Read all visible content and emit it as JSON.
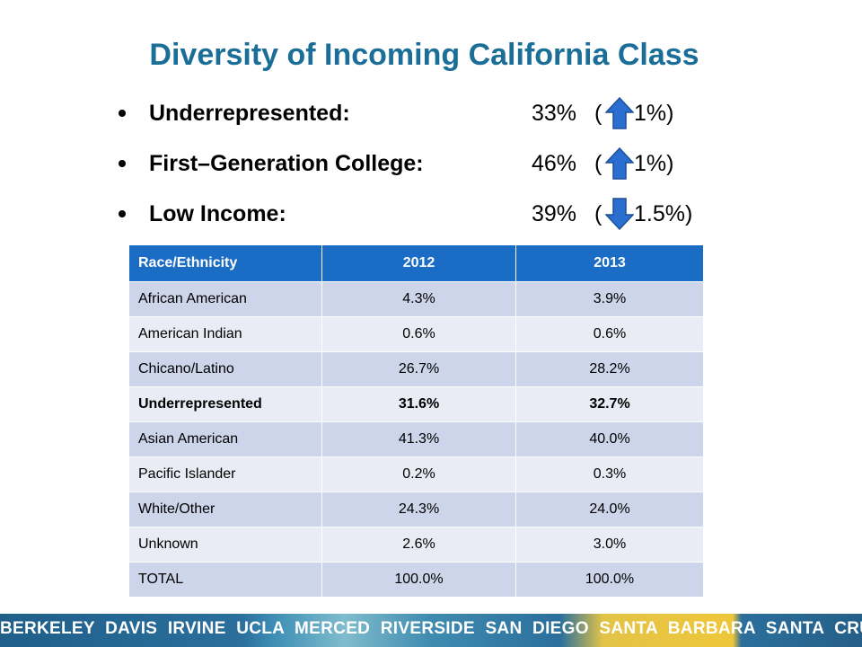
{
  "title": "Diversity of Incoming California Class",
  "bullets": [
    {
      "label": "Underrepresented:",
      "value": "33%",
      "paren_open": "(",
      "change": "1%)",
      "direction": "up"
    },
    {
      "label": "First–Generation College:",
      "value": "46%",
      "paren_open": "(",
      "change": "1%)",
      "direction": "up"
    },
    {
      "label": "Low Income:",
      "value": "39%",
      "paren_open": "(",
      "change": "1.5%)",
      "direction": "down"
    }
  ],
  "table": {
    "headers": [
      "Race/Ethnicity",
      "2012",
      "2013"
    ],
    "rows": [
      [
        "African American",
        "4.3%",
        "3.9%"
      ],
      [
        "American Indian",
        "0.6%",
        "0.6%"
      ],
      [
        "Chicano/Latino",
        "26.7%",
        "28.2%"
      ],
      [
        "Underrepresented",
        "31.6%",
        "32.7%"
      ],
      [
        "Asian American",
        "41.3%",
        "40.0%"
      ],
      [
        "Pacific Islander",
        "0.2%",
        "0.3%"
      ],
      [
        "White/Other",
        "24.3%",
        "24.0%"
      ],
      [
        "Unknown",
        "2.6%",
        "3.0%"
      ],
      [
        "TOTAL",
        "100.0%",
        "100.0%"
      ]
    ]
  },
  "footer": {
    "campuses": "BERKELEY DAVIS IRVINE UCLA MERCED RIVERSIDE SAN DIEGO SANTA BARBARA SANTA CRUZ"
  },
  "colors": {
    "title": "#1a6e97",
    "header_bg": "#1a6cc4",
    "row_odd": "#cdd5ea",
    "row_even": "#e9ecf5",
    "arrow": "#2a6fd0"
  }
}
